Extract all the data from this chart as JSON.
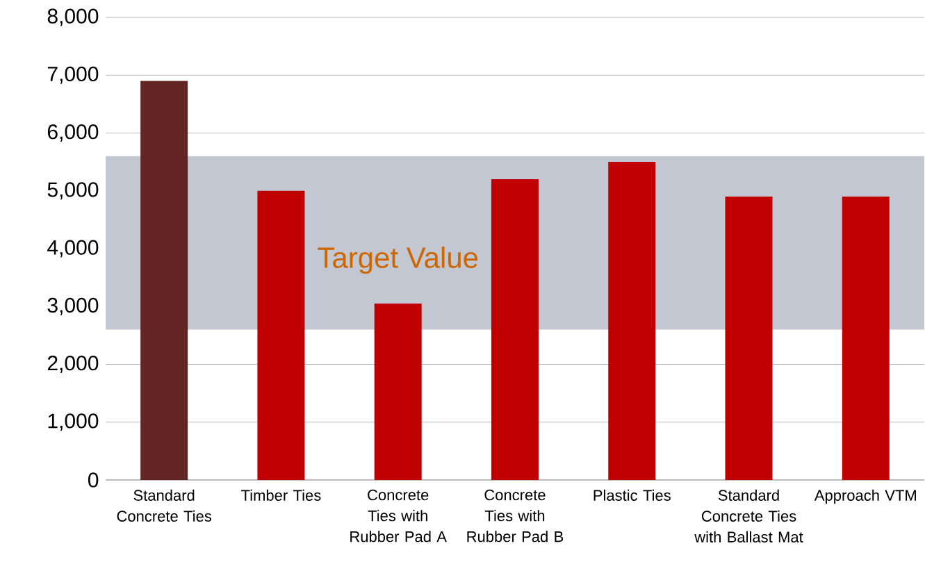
{
  "chart_data": {
    "type": "bar",
    "categories": [
      "Standard Concrete Ties",
      "Timber Ties",
      "Concrete Ties with Rubber Pad A",
      "Concrete Ties with Rubber Pad B",
      "Plastic Ties",
      "Standard Concrete Ties with Ballast Mat",
      "Approach VTM"
    ],
    "values": [
      6900,
      5000,
      3050,
      5200,
      5500,
      4900,
      4900
    ],
    "colors": [
      "#632523",
      "#c00000",
      "#c00000",
      "#c00000",
      "#c00000",
      "#c00000",
      "#c00000"
    ],
    "ylim": [
      0,
      8000
    ],
    "yticks": [
      {
        "value": 0,
        "label": "0"
      },
      {
        "value": 1000,
        "label": "1,000"
      },
      {
        "value": 2000,
        "label": "2,000"
      },
      {
        "value": 3000,
        "label": "3,000"
      },
      {
        "value": 4000,
        "label": "4,000"
      },
      {
        "value": 5000,
        "label": "5,000"
      },
      {
        "value": 6000,
        "label": "6,000"
      },
      {
        "value": 7000,
        "label": "7,000"
      },
      {
        "value": 8000,
        "label": "8,000"
      }
    ],
    "grid": "y",
    "bands": [
      {
        "axis": "y",
        "from": 2600,
        "to": 5600,
        "label": "Target Value",
        "color": "#c3c7d1"
      }
    ]
  }
}
